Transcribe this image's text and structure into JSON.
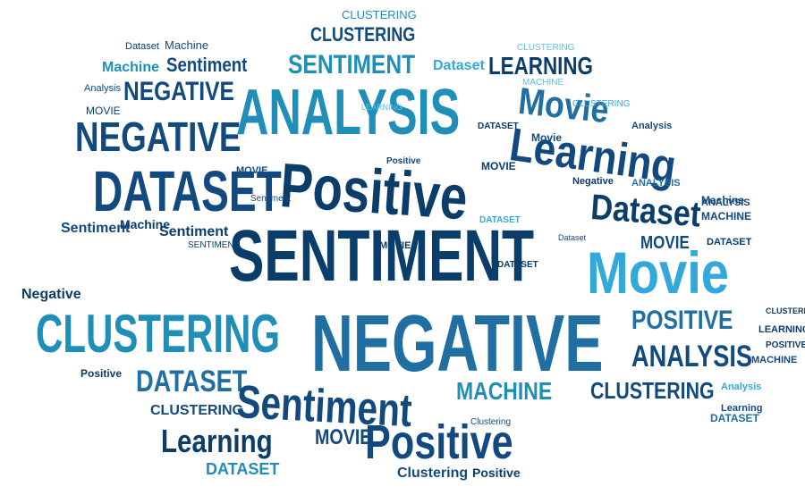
{
  "colors": {
    "navy": "#0b3d6b",
    "dark_blue": "#124a80",
    "steel_blue": "#1f6fa3",
    "teal": "#1f8fb8",
    "cyan": "#32a9d8",
    "light_blue": "#5cc0e8"
  },
  "words": [
    "CLUSTERING",
    "CLUSTERING",
    "Dataset",
    "Machine",
    "CLUSTERING",
    "Machine",
    "Sentiment",
    "SENTIMENT",
    "Dataset",
    "LEARNING",
    "Analysis",
    "NEGATIVE",
    "ANALYSIS",
    "Movie",
    "MOVIE",
    "NEGATIVE",
    "Learning",
    "DATASET",
    "Positive",
    "Dataset",
    "Sentiment",
    "Machine",
    "SENTIMENT",
    "Movie",
    "Negative",
    "CLUSTERING",
    "NEGATIVE",
    "POSITIVE",
    "ANALYSIS",
    "DATASET",
    "MACHINE",
    "Sentiment",
    "CLUSTERING",
    "Learning",
    "MOVIE",
    "Positive",
    "DATASET",
    "Clustering",
    "Positive",
    "MACHINE",
    "LEARNING",
    "CLUSTERING",
    "Analysis",
    "DATASET",
    "Positive",
    "MOVIE",
    "Sentiment",
    "SENTIMENT",
    "MACHINE",
    "LEARNING",
    "MOVIE",
    "DATASET",
    "ANALYSIS",
    "DATASET",
    "Dataset",
    "Learning",
    "Clustering",
    "Negative",
    "ANALYSIS",
    "POSITIVE",
    "MACHINE",
    "Sentiment",
    "MOVIE",
    "MOVIE",
    "DATASET",
    "Analysis",
    "CLUSTERING",
    "Positive",
    "Movie",
    "Machine",
    "DATASET",
    "CLUSTERING"
  ]
}
